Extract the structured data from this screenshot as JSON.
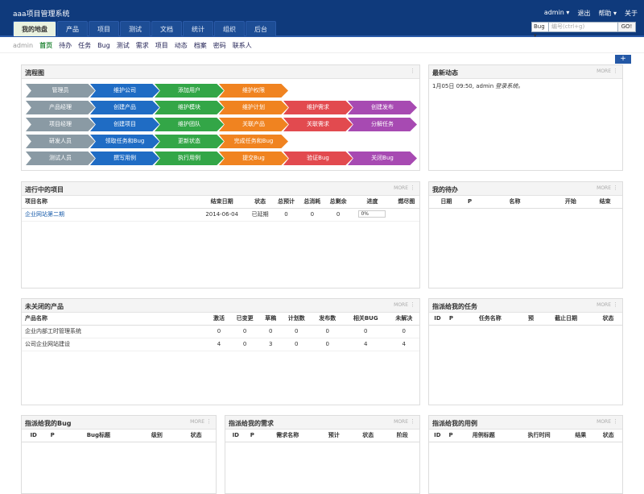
{
  "app": {
    "title": "aaa项目管理系统"
  },
  "top_right": {
    "user": "admin ▾",
    "logout": "退出",
    "help": "帮助 ▾",
    "about": "关于"
  },
  "main_tabs": [
    "我的地盘",
    "产品",
    "项目",
    "测试",
    "文档",
    "统计",
    "组织",
    "后台"
  ],
  "search": {
    "type": "Bug ▾",
    "placeholder": "编号(ctrl+g)",
    "go": "GO!"
  },
  "subnav": {
    "user": "admin",
    "items": [
      "首页",
      "待办",
      "任务",
      "Bug",
      "测试",
      "需求",
      "项目",
      "动态",
      "档案",
      "密码",
      "联系人"
    ]
  },
  "plus": "+",
  "panels": {
    "flow": {
      "title": "流程图"
    },
    "news": {
      "title": "最新动态",
      "more": "MORE",
      "dots": "⋮",
      "item_date": "1月05日 09:50,",
      "item_user": "admin",
      "item_text": "登录系统。"
    },
    "projects": {
      "title": "进行中的项目",
      "more": "MORE",
      "dots": "⋮",
      "headers": [
        "项目名称",
        "结束日期",
        "状态",
        "总预计",
        "总消耗",
        "总剩余",
        "进度",
        "燃尽图"
      ],
      "rows": [
        {
          "name": "企业网站第二期",
          "end": "2014-06-04",
          "status": "已延期",
          "estimate": "0",
          "consumed": "0",
          "left": "0",
          "progress": "0%"
        }
      ]
    },
    "todo": {
      "title": "我的待办",
      "more": "MORE",
      "dots": "⋮",
      "headers": [
        "日期",
        "P",
        "名称",
        "开始",
        "结束"
      ]
    },
    "products": {
      "title": "未关闭的产品",
      "more": "MORE",
      "dots": "⋮",
      "headers": [
        "产品名称",
        "激活",
        "已变更",
        "草稿",
        "计划数",
        "发布数",
        "相关BUG",
        "未解决"
      ],
      "rows": [
        [
          "企业内部工时管理系统",
          "0",
          "0",
          "0",
          "0",
          "0",
          "0",
          "0"
        ],
        [
          "公司企业网站建设",
          "4",
          "0",
          "3",
          "0",
          "0",
          "4",
          "4"
        ]
      ]
    },
    "tasks": {
      "title": "指派给我的任务",
      "more": "MORE",
      "dots": "⋮",
      "headers": [
        "ID",
        "P",
        "任务名称",
        "预",
        "截止日期",
        "状态"
      ]
    },
    "bugs": {
      "title": "指派给我的Bug",
      "more": "MORE",
      "dots": "⋮",
      "headers": [
        "ID",
        "P",
        "Bug标题",
        "级别",
        "状态"
      ]
    },
    "stories": {
      "title": "指派给我的需求",
      "more": "MORE",
      "dots": "⋮",
      "headers": [
        "ID",
        "P",
        "需求名称",
        "预计",
        "状态",
        "阶段"
      ]
    },
    "cases": {
      "title": "指派给我的用例",
      "more": "MORE",
      "dots": "⋮",
      "headers": [
        "ID",
        "P",
        "用例标题",
        "执行时间",
        "结果",
        "状态"
      ]
    }
  },
  "flow_rows": [
    [
      "管理员",
      "维护公司",
      "添加用户",
      "维护权限"
    ],
    [
      "产品经理",
      "创建产品",
      "维护模块",
      "维护计划",
      "维护需求",
      "创建发布"
    ],
    [
      "项目经理",
      "创建项目",
      "维护团队",
      "关联产品",
      "关联需求",
      "分解任务"
    ],
    [
      "研发人员",
      "领取任务和Bug",
      "更新状态",
      "完成任务和Bug"
    ],
    [
      "测试人员",
      "撰写用例",
      "执行用例",
      "提交Bug",
      "验证Bug",
      "关闭Bug"
    ]
  ],
  "flow_colors": [
    "#8a9aa4",
    "#1f6cc4",
    "#33a647",
    "#f08320",
    "#e24a4f",
    "#a74ab2"
  ]
}
